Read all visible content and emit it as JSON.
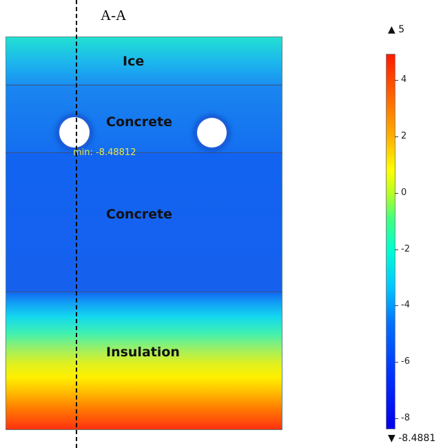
{
  "section_title": "A-A",
  "layers": [
    {
      "name": "Ice"
    },
    {
      "name": "Concrete"
    },
    {
      "name": "Concrete"
    },
    {
      "name": "Insulation"
    }
  ],
  "min_annotation": "min: -8.48812",
  "colorbar": {
    "max_label": "▲ 5",
    "min_label": "▼ -8.4881",
    "ticks": [
      "4",
      "2",
      "0",
      "-2",
      "-4",
      "-6",
      "-8"
    ],
    "colors": [
      "#ff1a00",
      "#ffb000",
      "#ffff00",
      "#40ff80",
      "#00ffd0",
      "#0070ff",
      "#0000ee"
    ]
  }
}
